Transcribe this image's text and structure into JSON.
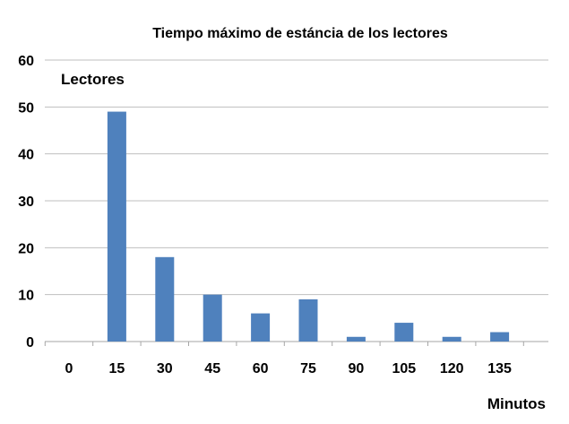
{
  "chart_data": {
    "type": "bar",
    "title": "Tiempo máximo de estáncia de los lectores",
    "ylabel": "Lectores",
    "xlabel": "Minutos",
    "categories": [
      "0",
      "15",
      "30",
      "45",
      "60",
      "75",
      "90",
      "105",
      "120",
      "135"
    ],
    "values": [
      0,
      49,
      18,
      10,
      6,
      9,
      1,
      4,
      1,
      2
    ],
    "ylim": [
      0,
      60
    ],
    "yticks": [
      "0",
      "10",
      "20",
      "30",
      "40",
      "50",
      "60"
    ],
    "grid": true,
    "legend": "none",
    "colors": {
      "bar": "#4f81bd",
      "grid": "#bfbfbf",
      "axis": "#a6a6a6"
    }
  }
}
